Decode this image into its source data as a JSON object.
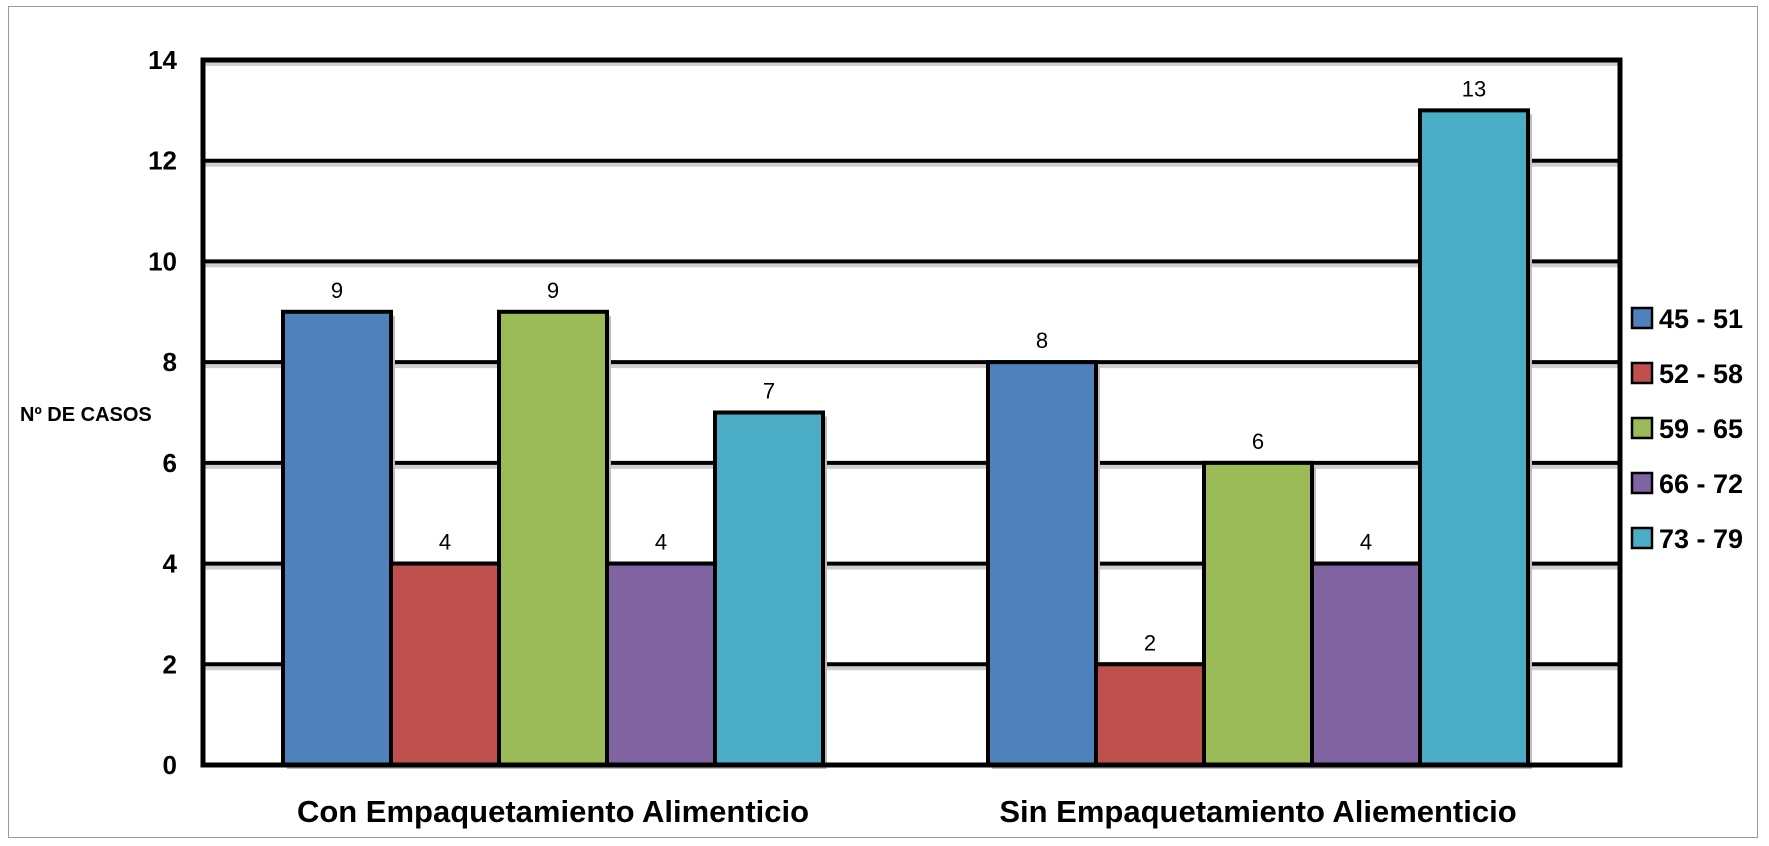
{
  "chart_data": {
    "type": "bar",
    "ylabel": "Nº DE CASOS",
    "xlabel": "",
    "ylim": [
      0,
      14
    ],
    "yticks": [
      0,
      2,
      4,
      6,
      8,
      10,
      12,
      14
    ],
    "grid": true,
    "legend_position": "right",
    "categories": [
      "Con Empaquetamiento Alimenticio",
      "Sin Empaquetamiento Aliementicio"
    ],
    "series": [
      {
        "name": "45 - 51",
        "color": "#4F81BD",
        "values": [
          9,
          8
        ]
      },
      {
        "name": "52 - 58",
        "color": "#C0504D",
        "values": [
          4,
          2
        ]
      },
      {
        "name": "59 - 65",
        "color": "#9BBB59",
        "values": [
          9,
          6
        ]
      },
      {
        "name": "66 - 72",
        "color": "#8064A2",
        "values": [
          4,
          4
        ]
      },
      {
        "name": "73 - 79",
        "color": "#4BACC6",
        "values": [
          7,
          13
        ]
      }
    ]
  }
}
